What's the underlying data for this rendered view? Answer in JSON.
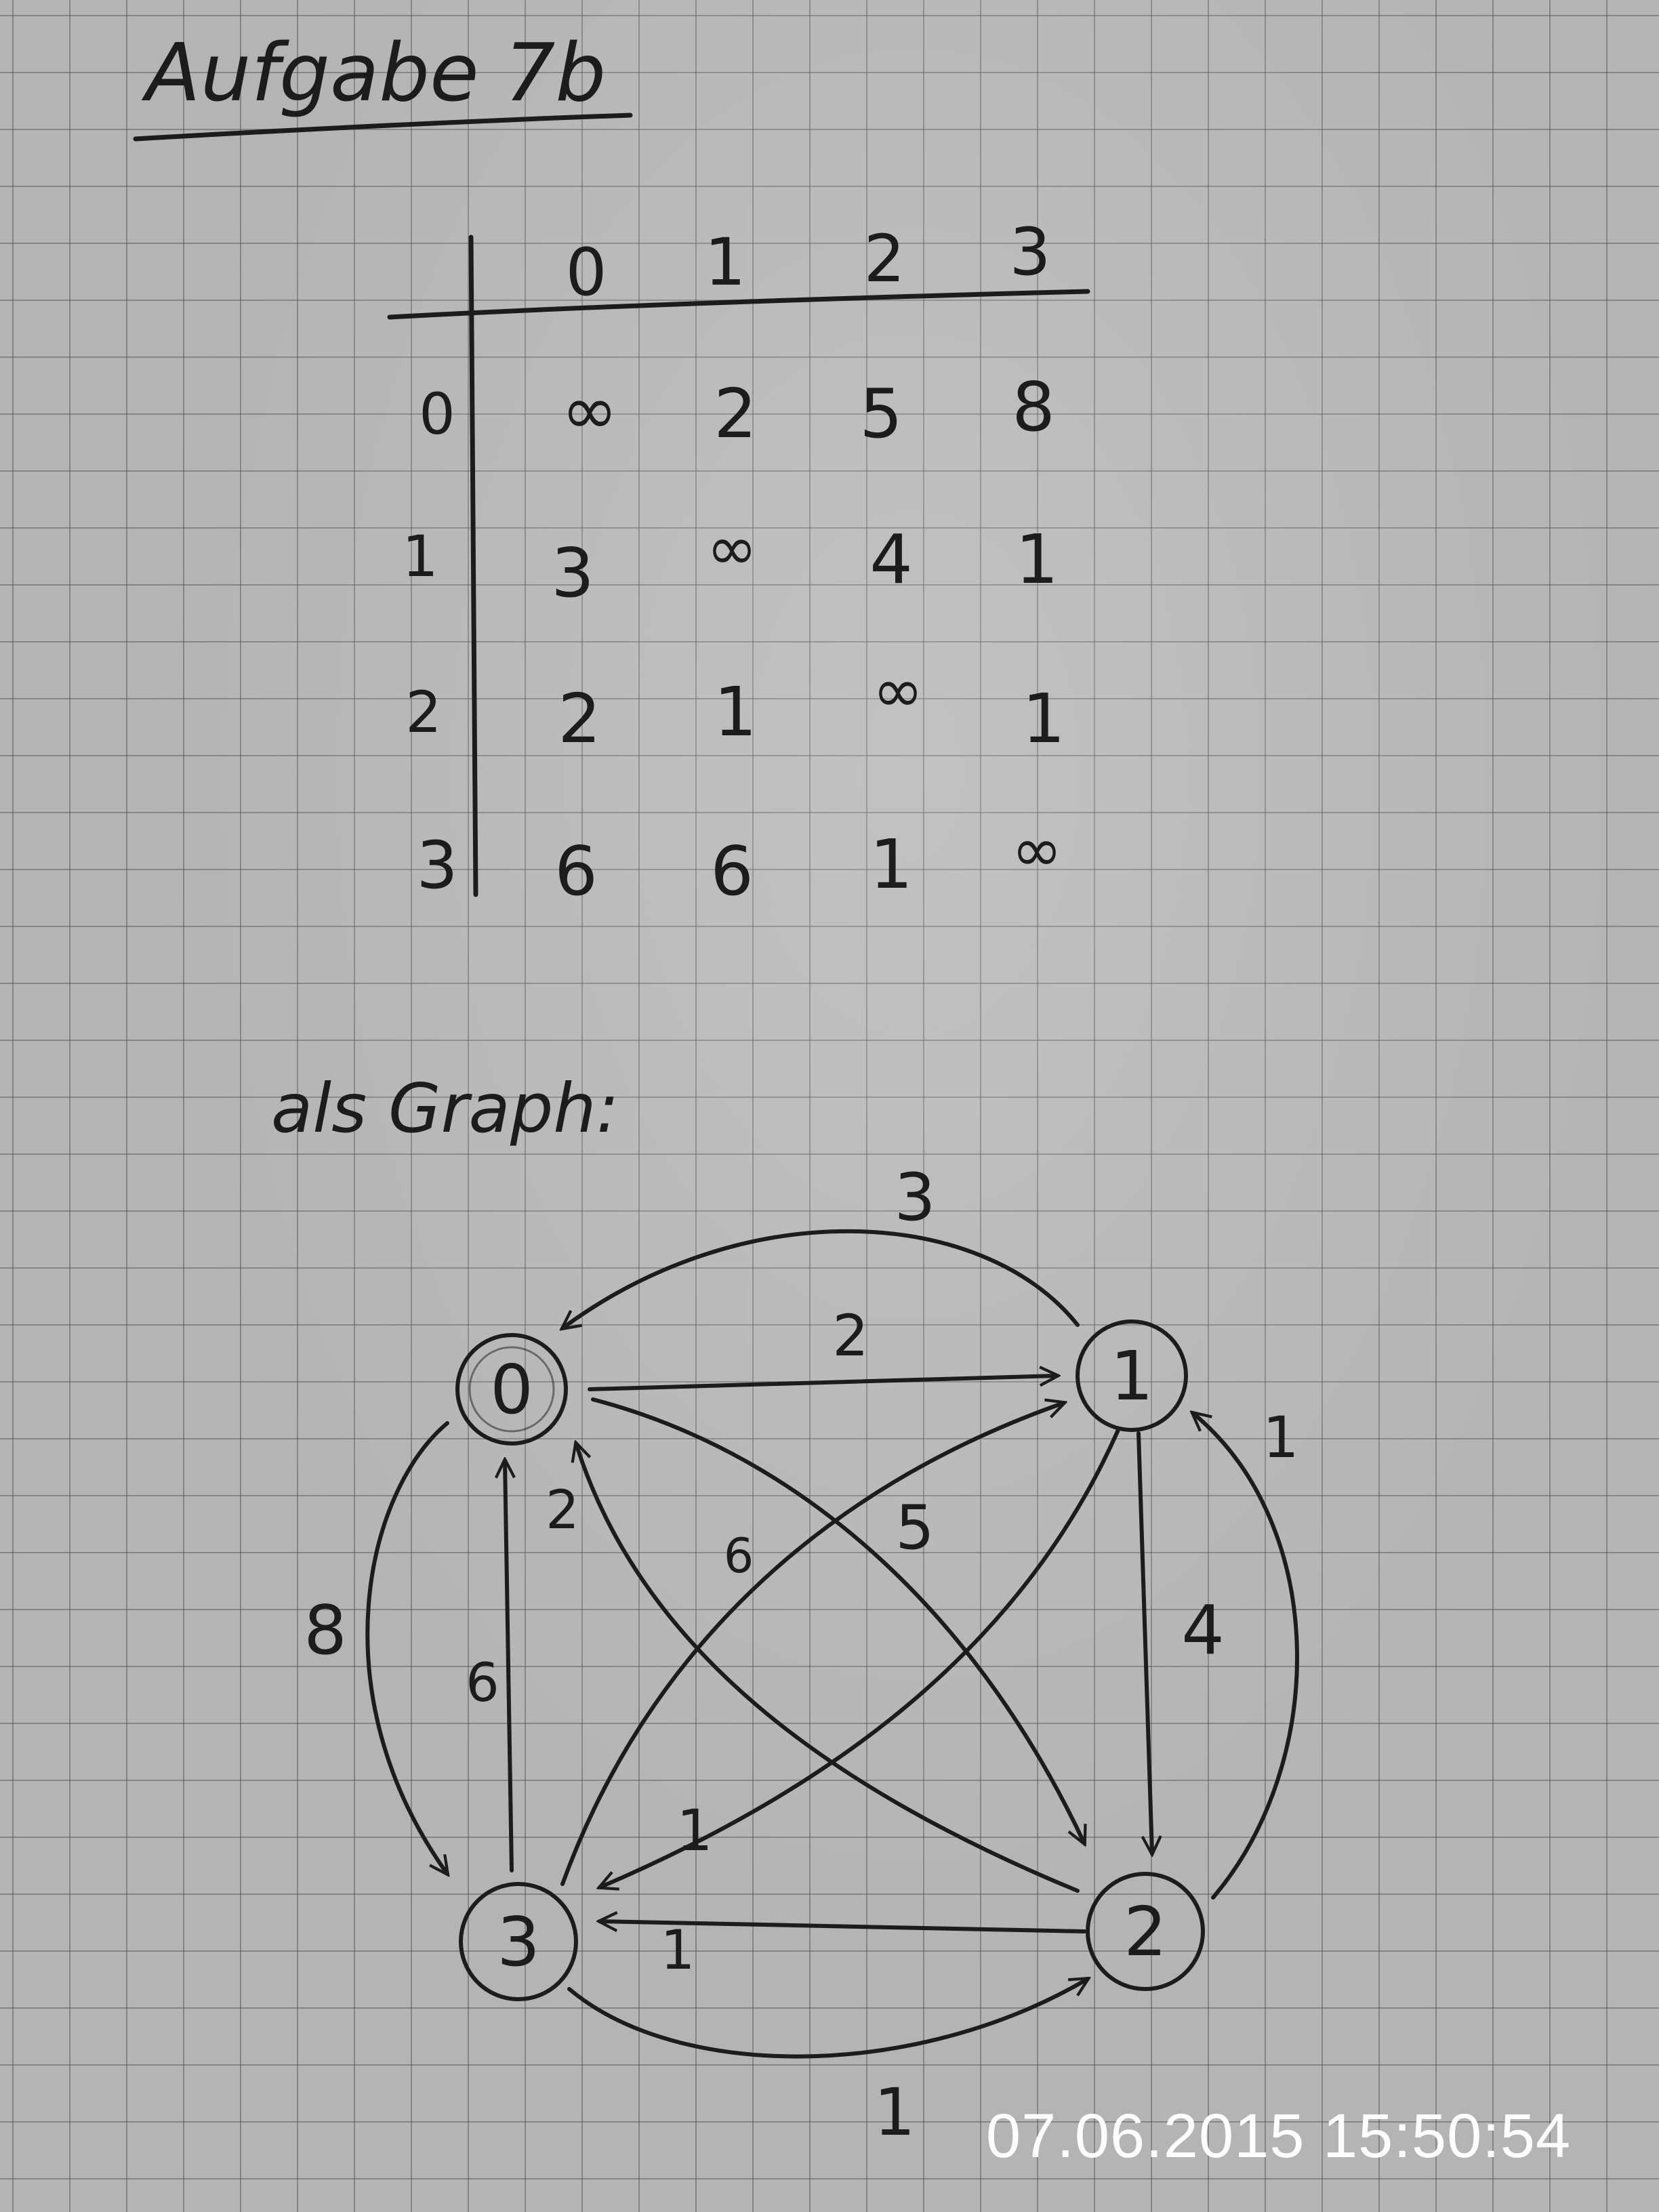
{
  "title": "Aufgabe 7b",
  "matrix": {
    "col_headers": [
      "0",
      "1",
      "2",
      "3"
    ],
    "row_headers": [
      "0",
      "1",
      "2",
      "3"
    ],
    "rows": [
      [
        "∞",
        "2",
        "5",
        "8"
      ],
      [
        "3",
        "∞",
        "4",
        "1"
      ],
      [
        "2",
        "1",
        "∞",
        "1"
      ],
      [
        "6",
        "6",
        "1",
        "∞"
      ]
    ]
  },
  "graph_caption": "als Graph:",
  "graph": {
    "nodes": [
      "0",
      "1",
      "2",
      "3"
    ],
    "edges": [
      {
        "from": "0",
        "to": "1",
        "weight": "2"
      },
      {
        "from": "1",
        "to": "0",
        "weight": "3"
      },
      {
        "from": "0",
        "to": "2",
        "weight": "5"
      },
      {
        "from": "0",
        "to": "3",
        "weight": "8"
      },
      {
        "from": "3",
        "to": "0",
        "weight": "6"
      },
      {
        "from": "2",
        "to": "0",
        "weight": "2"
      },
      {
        "from": "3",
        "to": "1",
        "weight": "6"
      },
      {
        "from": "1",
        "to": "3",
        "weight": "1"
      },
      {
        "from": "1",
        "to": "2",
        "weight": "4"
      },
      {
        "from": "2",
        "to": "1",
        "weight": "1"
      },
      {
        "from": "2",
        "to": "3",
        "weight": "1"
      },
      {
        "from": "3",
        "to": "2",
        "weight": "1"
      }
    ]
  },
  "timestamp": "07.06.2015 15:50:54"
}
